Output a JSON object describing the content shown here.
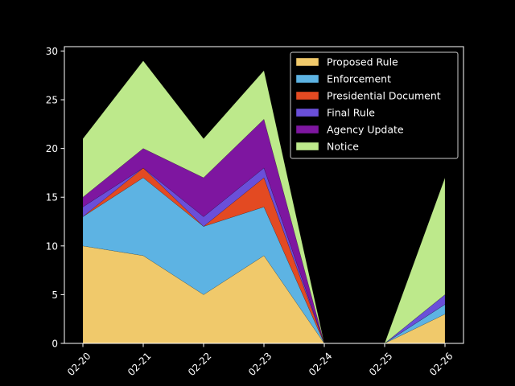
{
  "chart_data": {
    "type": "area",
    "stacked": true,
    "categories": [
      "02-20",
      "02-21",
      "02-22",
      "02-23",
      "02-24",
      "02-25",
      "02-26"
    ],
    "series": [
      {
        "name": "Proposed Rule",
        "color": "#f0c96b",
        "values": [
          10,
          9,
          5,
          9,
          0,
          0,
          3
        ]
      },
      {
        "name": "Enforcement",
        "color": "#5db3e3",
        "values": [
          3,
          8,
          7,
          5,
          0,
          0,
          1
        ]
      },
      {
        "name": "Presidential Document",
        "color": "#e34a22",
        "values": [
          0,
          1,
          0,
          3,
          0,
          0,
          0
        ]
      },
      {
        "name": "Final Rule",
        "color": "#6a4fd9",
        "values": [
          1,
          0,
          1,
          1,
          0,
          0,
          1
        ]
      },
      {
        "name": "Agency Update",
        "color": "#7e16a0",
        "values": [
          1,
          2,
          4,
          5,
          0,
          0,
          0
        ]
      },
      {
        "name": "Notice",
        "color": "#bde98b",
        "values": [
          6,
          9,
          4,
          5,
          0,
          0,
          12
        ]
      }
    ],
    "ylim": [
      0,
      30.45
    ],
    "yticks": [
      "0",
      "5",
      "10",
      "15",
      "20",
      "25",
      "30"
    ],
    "title": "",
    "xlabel": "",
    "ylabel": "",
    "legend_position": "upper right",
    "grid": false,
    "background": "#000000",
    "axis_color": "#ffffff"
  }
}
